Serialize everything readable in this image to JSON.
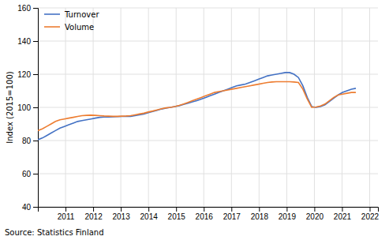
{
  "chart_data": {
    "type": "line",
    "y_label": "Index (2015=100)",
    "annotations": [
      "Source: Statistics Finland"
    ],
    "x": [
      2010,
      2010.159722,
      2010.319444,
      2010.479167,
      2010.638889,
      2010.798611,
      2010.958333,
      2011.118056,
      2011.277778,
      2011.4375,
      2011.597222,
      2011.756944,
      2011.916667,
      2012.076389,
      2012.236111,
      2012.395833,
      2012.555556,
      2012.715278,
      2012.875,
      2013.034722,
      2013.194444,
      2013.354167,
      2013.513889,
      2013.673611,
      2013.833333,
      2013.993056,
      2014.152778,
      2014.3125,
      2014.472222,
      2014.631944,
      2014.791667,
      2014.951389,
      2015.111111,
      2015.270833,
      2015.430556,
      2015.590278,
      2015.75,
      2015.909722,
      2016.069444,
      2016.229167,
      2016.388889,
      2016.548611,
      2016.708333,
      2016.868056,
      2017.027778,
      2017.1875,
      2017.347222,
      2017.506944,
      2017.666667,
      2017.826389,
      2017.986111,
      2018.145833,
      2018.305556,
      2018.465278,
      2018.625,
      2018.784722,
      2018.944444,
      2019.104167,
      2019.263889,
      2019.423611,
      2019.583333,
      2019.743056,
      2019.902778,
      2020.0625,
      2020.222222,
      2020.381944,
      2020.541667,
      2020.701389,
      2020.861111,
      2021.020833,
      2021.180556,
      2021.340278,
      2021.5
    ],
    "series": [
      {
        "name": "Turnover",
        "color": "#4472c4",
        "values": [
          80.5,
          81.5,
          83.0,
          84.5,
          86.0,
          87.5,
          88.5,
          89.5,
          90.5,
          91.5,
          92.0,
          92.5,
          93.0,
          93.5,
          94.0,
          94.2,
          94.2,
          94.3,
          94.4,
          94.5,
          94.5,
          94.5,
          95.0,
          95.5,
          96.0,
          96.8,
          97.5,
          98.2,
          99.0,
          99.5,
          100.0,
          100.5,
          101.0,
          101.8,
          102.5,
          103.3,
          104.0,
          105.0,
          106.0,
          107.0,
          108.0,
          109.0,
          110.0,
          111.0,
          112.0,
          113.0,
          113.5,
          114.0,
          115.0,
          116.0,
          117.0,
          118.0,
          119.0,
          119.5,
          120.0,
          120.5,
          121.0,
          121.0,
          120.0,
          118.0,
          113.0,
          106.0,
          100.5,
          100.0,
          100.5,
          101.5,
          103.5,
          105.5,
          107.5,
          109.0,
          110.0,
          111.0,
          111.5
        ]
      },
      {
        "name": "Volume",
        "color": "#ed7d31",
        "values": [
          86.0,
          87.0,
          88.5,
          90.0,
          91.5,
          92.5,
          93.0,
          93.5,
          94.0,
          94.5,
          95.0,
          95.2,
          95.3,
          95.2,
          95.0,
          94.8,
          94.7,
          94.6,
          94.6,
          94.7,
          94.8,
          95.0,
          95.5,
          96.0,
          96.5,
          97.2,
          97.8,
          98.5,
          99.2,
          99.7,
          100.0,
          100.5,
          101.2,
          102.0,
          103.0,
          104.0,
          105.0,
          106.0,
          107.0,
          108.0,
          109.0,
          109.5,
          110.0,
          110.5,
          111.0,
          111.5,
          112.0,
          112.5,
          113.0,
          113.5,
          114.0,
          114.5,
          115.0,
          115.3,
          115.5,
          115.5,
          115.5,
          115.5,
          115.3,
          115.0,
          111.0,
          105.0,
          100.0,
          100.2,
          100.8,
          102.0,
          104.0,
          106.0,
          107.5,
          108.0,
          108.5,
          109.0,
          109.0
        ]
      }
    ],
    "xlim": [
      2010.0,
      2022.3
    ],
    "xticks": [
      2011,
      2012,
      2013,
      2014,
      2015,
      2016,
      2017,
      2018,
      2019,
      2020,
      2021,
      2022
    ],
    "ylim": [
      40,
      160
    ],
    "yticks": [
      40,
      60,
      80,
      100,
      120,
      140,
      160
    ],
    "grid": true,
    "legend": "upper left"
  }
}
